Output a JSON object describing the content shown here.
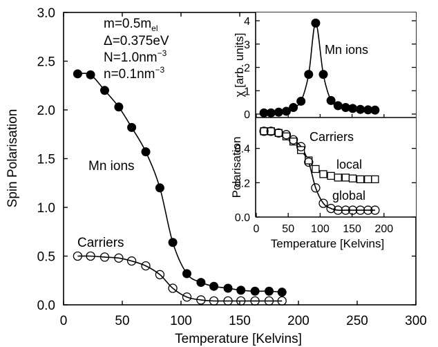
{
  "chart_data": [
    {
      "type": "line",
      "xlabel": "Temperature [Kelvins]",
      "ylabel": "Spin Polarisation",
      "xlim": [
        0,
        300
      ],
      "ylim": [
        0,
        3.0
      ],
      "xticks": [
        "0",
        "50",
        "100",
        "150",
        "200",
        "250",
        "300"
      ],
      "yticks": [
        "0.0",
        "0.5",
        "1.0",
        "1.5",
        "2.0",
        "2.5",
        "3.0"
      ],
      "grid": false,
      "parameters": [
        "m=0.5m",
        "el",
        "Δ=0.375eV",
        "N=1.0nm",
        "−3",
        "n=0.1nm",
        "−3"
      ],
      "annotations": [
        "Mn ions",
        "Carriers"
      ],
      "series": [
        {
          "marker": "filled-circle",
          "x": [
            12,
            23,
            35,
            47,
            58,
            70,
            82,
            93,
            105,
            117,
            128,
            140,
            151,
            163,
            175,
            186
          ],
          "y": [
            2.37,
            2.36,
            2.2,
            2.03,
            1.82,
            1.57,
            1.2,
            0.64,
            0.32,
            0.23,
            0.19,
            0.17,
            0.15,
            0.14,
            0.14,
            0.13
          ]
        },
        {
          "marker": "open-circle",
          "x": [
            12,
            23,
            35,
            47,
            58,
            70,
            82,
            93,
            105,
            117,
            128,
            140,
            151,
            163,
            175,
            186
          ],
          "y": [
            0.5,
            0.5,
            0.49,
            0.48,
            0.45,
            0.4,
            0.31,
            0.17,
            0.08,
            0.05,
            0.04,
            0.04,
            0.04,
            0.04,
            0.04,
            0.04
          ]
        }
      ]
    },
    {
      "type": "line",
      "ylabel": "χ [arb. units]",
      "xlim": [
        0,
        250
      ],
      "ylim": [
        0,
        4
      ],
      "yticks": [
        "0",
        "1",
        "2",
        "3",
        "4"
      ],
      "annotations": [
        "Mn ions"
      ],
      "series": [
        {
          "marker": "filled-circle",
          "x": [
            12,
            23,
            35,
            47,
            58,
            70,
            82,
            93,
            105,
            117,
            128,
            140,
            151,
            163,
            175,
            186
          ],
          "y": [
            0.05,
            0.05,
            0.08,
            0.12,
            0.28,
            0.55,
            1.7,
            3.9,
            1.7,
            0.58,
            0.36,
            0.28,
            0.24,
            0.2,
            0.18,
            0.17
          ]
        }
      ]
    },
    {
      "type": "line",
      "xlabel": "Temperature [Kelvins]",
      "ylabel": "Polarisation",
      "xlim": [
        0,
        250
      ],
      "ylim": [
        0,
        0.58
      ],
      "xticks": [
        "0",
        "50",
        "100",
        "150",
        "200"
      ],
      "yticks": [
        "0.0",
        "0.2",
        "0.4"
      ],
      "annotations": [
        "Carriers",
        "local",
        "global"
      ],
      "series": [
        {
          "name": "local",
          "marker": "open-square",
          "x": [
            12,
            23,
            35,
            47,
            58,
            70,
            82,
            93,
            105,
            117,
            128,
            140,
            151,
            163,
            175,
            186
          ],
          "y": [
            0.5,
            0.5,
            0.49,
            0.47,
            0.44,
            0.39,
            0.33,
            0.28,
            0.25,
            0.24,
            0.23,
            0.23,
            0.225,
            0.22,
            0.22,
            0.22
          ]
        },
        {
          "name": "global",
          "marker": "open-circle",
          "x": [
            12,
            23,
            35,
            47,
            58,
            70,
            82,
            93,
            105,
            117,
            128,
            140,
            151,
            163,
            175,
            186
          ],
          "y": [
            0.5,
            0.5,
            0.49,
            0.48,
            0.45,
            0.41,
            0.32,
            0.17,
            0.08,
            0.05,
            0.04,
            0.04,
            0.04,
            0.04,
            0.04,
            0.04
          ]
        }
      ]
    }
  ]
}
